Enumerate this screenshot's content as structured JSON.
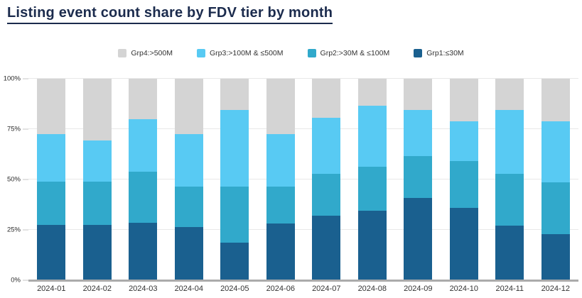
{
  "page": {
    "title": "Listing event count share by FDV tier by month"
  },
  "colors": {
    "title": "#1b2b4d",
    "grid": "#e8e8e8",
    "axis_line": "#ababab",
    "tick_text": "#2b2b2b",
    "legend_text": "#333333"
  },
  "chart_data": {
    "type": "bar",
    "stacked": true,
    "stacking": "percent",
    "title": "Listing event count share by FDV tier by month",
    "legend_position": "top",
    "grid": true,
    "ylim": [
      0,
      100
    ],
    "y_ticks": [
      {
        "value": 0,
        "label": "0%"
      },
      {
        "value": 25,
        "label": "25%"
      },
      {
        "value": 50,
        "label": "50%"
      },
      {
        "value": 75,
        "label": "75%"
      },
      {
        "value": 100,
        "label": "100%"
      }
    ],
    "categories": [
      "2024-01",
      "2024-02",
      "2024-03",
      "2024-04",
      "2024-05",
      "2024-06",
      "2024-07",
      "2024-08",
      "2024-09",
      "2024-10",
      "2024-11",
      "2024-12"
    ],
    "series": [
      {
        "name": "Grp4:>500M",
        "color": "#d4d4d4",
        "values": [
          27.5,
          30.5,
          20.0,
          27.5,
          15.5,
          27.5,
          19.5,
          13.5,
          15.5,
          21.0,
          15.5,
          21.0
        ]
      },
      {
        "name": "Grp3:>100M & ≤500M",
        "color": "#58caf3",
        "values": [
          23.5,
          20.5,
          26.0,
          26.0,
          38.0,
          26.0,
          27.5,
          30.0,
          23.0,
          20.0,
          31.5,
          30.5
        ]
      },
      {
        "name": "Grp2:>30M & ≤100M",
        "color": "#31a9cb",
        "values": [
          21.5,
          21.5,
          25.5,
          20.0,
          28.0,
          18.5,
          21.0,
          22.0,
          20.5,
          23.0,
          26.0,
          25.5
        ]
      },
      {
        "name": "Grp1:≤30M",
        "color": "#1a608f",
        "values": [
          27.5,
          27.5,
          28.5,
          26.5,
          18.5,
          28.0,
          32.0,
          34.5,
          41.0,
          36.0,
          27.0,
          23.0
        ]
      }
    ]
  }
}
